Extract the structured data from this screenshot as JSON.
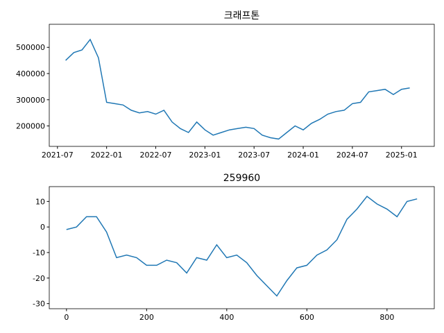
{
  "chart_data": [
    {
      "type": "line",
      "title": "크래프톤",
      "x": [
        "2021-08",
        "2021-09",
        "2021-10",
        "2021-11",
        "2021-12",
        "2022-01",
        "2022-02",
        "2022-03",
        "2022-04",
        "2022-05",
        "2022-06",
        "2022-07",
        "2022-08",
        "2022-09",
        "2022-10",
        "2022-11",
        "2022-12",
        "2023-01",
        "2023-02",
        "2023-03",
        "2023-04",
        "2023-05",
        "2023-06",
        "2023-07",
        "2023-08",
        "2023-09",
        "2023-10",
        "2023-11",
        "2023-12",
        "2024-01",
        "2024-02",
        "2024-03",
        "2024-04",
        "2024-05",
        "2024-06",
        "2024-07",
        "2024-08",
        "2024-09",
        "2024-10",
        "2024-11",
        "2024-12",
        "2025-01",
        "2025-02"
      ],
      "series": [
        {
          "color": "#1f77b4",
          "values": [
            450000,
            480000,
            490000,
            530000,
            460000,
            290000,
            285000,
            280000,
            260000,
            250000,
            255000,
            245000,
            260000,
            215000,
            190000,
            175000,
            215000,
            185000,
            165000,
            175000,
            185000,
            190000,
            195000,
            190000,
            165000,
            155000,
            150000,
            175000,
            200000,
            185000,
            210000,
            225000,
            245000,
            255000,
            260000,
            285000,
            290000,
            330000,
            335000,
            340000,
            320000,
            340000,
            345000
          ]
        }
      ],
      "xlim": [
        "2021-06",
        "2025-05"
      ],
      "xticks": [
        "2021-07",
        "2022-01",
        "2022-07",
        "2023-01",
        "2023-07",
        "2024-01",
        "2024-07",
        "2025-01"
      ],
      "ylim": [
        122000,
        588000
      ],
      "yticks": [
        200000,
        300000,
        400000,
        500000
      ]
    },
    {
      "type": "line",
      "title": "259960",
      "x": [
        0,
        25,
        50,
        75,
        100,
        125,
        150,
        175,
        200,
        225,
        250,
        275,
        300,
        325,
        350,
        375,
        400,
        425,
        450,
        475,
        500,
        525,
        550,
        575,
        600,
        625,
        650,
        675,
        700,
        725,
        750,
        775,
        800,
        825,
        850,
        875
      ],
      "series": [
        {
          "color": "#1f77b4",
          "values": [
            -1,
            0,
            4,
            4,
            -2,
            -12,
            -11,
            -12,
            -15,
            -15,
            -13,
            -14,
            -18,
            -12,
            -13,
            -7,
            -12,
            -11,
            -14,
            -19,
            -23,
            -27,
            -21,
            -16,
            -15,
            -11,
            -9,
            -5,
            3,
            7,
            12,
            9,
            7,
            4,
            10,
            11
          ]
        }
      ],
      "xlim": [
        -43,
        918
      ],
      "xticks": [
        0,
        200,
        400,
        600,
        800
      ],
      "ylim": [
        -32,
        15.8
      ],
      "yticks": [
        -30,
        -20,
        -10,
        0,
        10
      ]
    }
  ]
}
